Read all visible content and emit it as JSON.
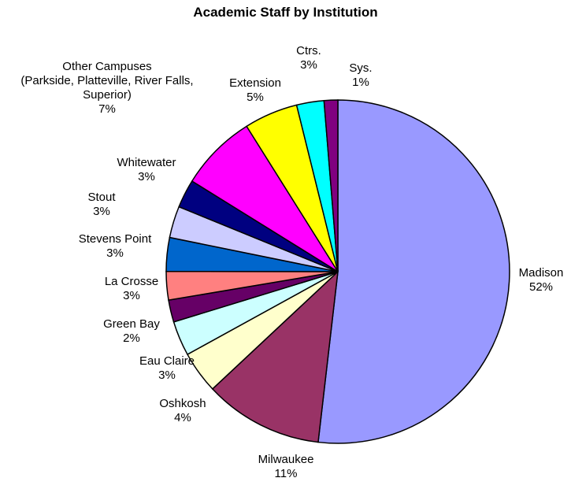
{
  "chart_data": {
    "type": "pie",
    "title": "Academic Staff by Institution",
    "slices": [
      {
        "label": [
          "Madison"
        ],
        "pct_label": "52%",
        "value": 52.3,
        "color": "#9999ff"
      },
      {
        "label": [
          "Milwaukee"
        ],
        "pct_label": "11%",
        "value": 11.3,
        "color": "#993366"
      },
      {
        "label": [
          "Oshkosh"
        ],
        "pct_label": "4%",
        "value": 4.0,
        "color": "#ffffcc"
      },
      {
        "label": [
          "Eau Claire"
        ],
        "pct_label": "3%",
        "value": 3.3,
        "color": "#ccffff"
      },
      {
        "label": [
          "Green Bay"
        ],
        "pct_label": "2%",
        "value": 2.1,
        "color": "#660066"
      },
      {
        "label": [
          "La Crosse"
        ],
        "pct_label": "3%",
        "value": 2.7,
        "color": "#ff8080"
      },
      {
        "label": [
          "Stevens Point"
        ],
        "pct_label": "3%",
        "value": 3.2,
        "color": "#0066cc"
      },
      {
        "label": [
          "Stout"
        ],
        "pct_label": "3%",
        "value": 3.0,
        "color": "#ccccff"
      },
      {
        "label": [
          "Whitewater"
        ],
        "pct_label": "3%",
        "value": 2.7,
        "color": "#000080"
      },
      {
        "label": [
          "Other Campuses",
          "(Parkside, Platteville, River Falls,",
          "Superior)"
        ],
        "pct_label": "7%",
        "value": 7.3,
        "color": "#ff00ff"
      },
      {
        "label": [
          "Extension"
        ],
        "pct_label": "5%",
        "value": 5.1,
        "color": "#ffff00"
      },
      {
        "label": [
          "Ctrs."
        ],
        "pct_label": "3%",
        "value": 2.6,
        "color": "#00ffff"
      },
      {
        "label": [
          "Sys."
        ],
        "pct_label": "1%",
        "value": 1.3,
        "color": "#800080"
      }
    ]
  }
}
